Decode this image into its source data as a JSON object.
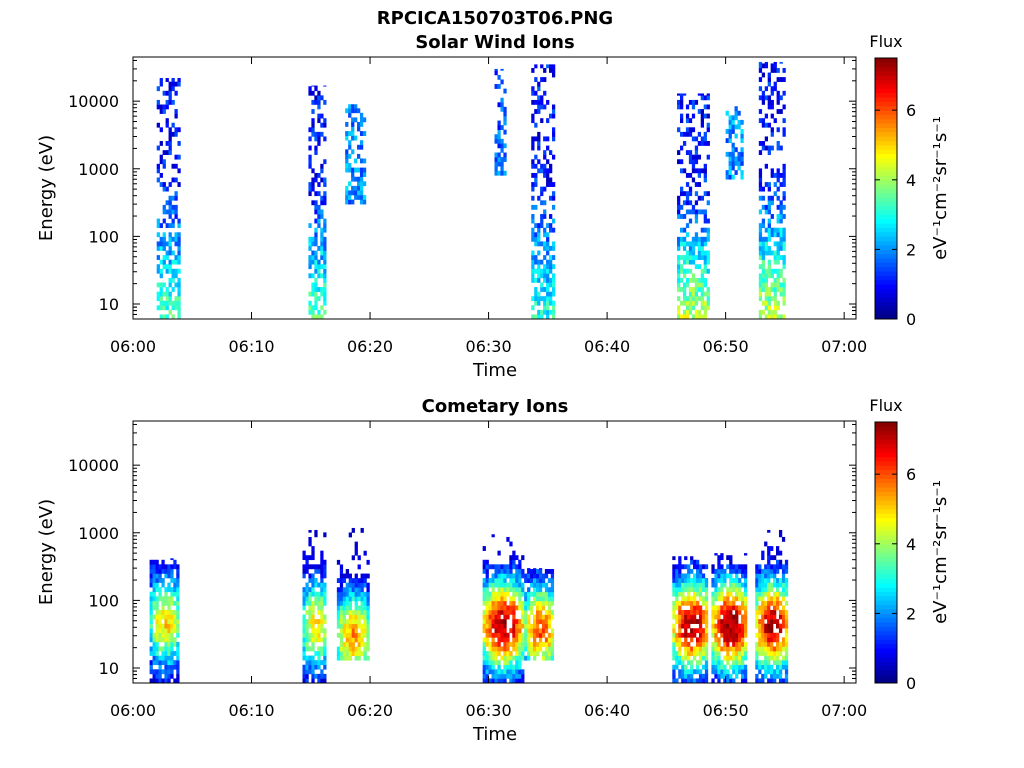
{
  "figure": {
    "title": "RPCICA150703T06.PNG"
  },
  "colormap": {
    "name": "jet",
    "stops": [
      "#00007f",
      "#0000ff",
      "#007fff",
      "#00ffff",
      "#7fff7f",
      "#ffff00",
      "#ff7f00",
      "#ff0000",
      "#7f0000"
    ]
  },
  "chart_data": [
    {
      "type": "heatmap",
      "title": "Solar Wind Ions",
      "xlabel": "Time",
      "ylabel": "Energy (eV)",
      "x_ticks": [
        "06:00",
        "06:10",
        "06:20",
        "06:30",
        "06:40",
        "06:50",
        "07:00"
      ],
      "x_tick_minutes": [
        0,
        10,
        20,
        30,
        40,
        50,
        60
      ],
      "xlim_minutes": [
        0,
        61
      ],
      "y_scale": "log",
      "ylim": [
        6,
        45000
      ],
      "y_ticks": [
        "10",
        "100",
        "1000",
        "10000"
      ],
      "y_tick_values": [
        10,
        100,
        1000,
        10000
      ],
      "colorbar": {
        "label_top": "Flux",
        "unit_label": "eV⁻¹cm⁻²sr⁻¹s⁻¹",
        "range": [
          0,
          7.5
        ],
        "ticks": [
          "0",
          "2",
          "4",
          "6"
        ],
        "tick_values": [
          0,
          2,
          4,
          6
        ]
      },
      "bursts": [
        {
          "t_start": 2.0,
          "t_end": 3.8,
          "e_min": 6,
          "e_max": 22000,
          "low_flux": 3.5,
          "high_flux": 1.0
        },
        {
          "t_start": 14.8,
          "t_end": 16.3,
          "e_min": 6,
          "e_max": 17000,
          "low_flux": 3.5,
          "high_flux": 1.0
        },
        {
          "t_start": 17.9,
          "t_end": 19.6,
          "e_min": 300,
          "e_max": 9000,
          "low_flux": 2.0,
          "high_flux": 2.0
        },
        {
          "t_start": 30.5,
          "t_end": 31.4,
          "e_min": 800,
          "e_max": 30000,
          "low_flux": 2.0,
          "high_flux": 1.5
        },
        {
          "t_start": 33.6,
          "t_end": 35.5,
          "e_min": 6,
          "e_max": 35000,
          "low_flux": 3.0,
          "high_flux": 1.0
        },
        {
          "t_start": 45.9,
          "t_end": 48.5,
          "e_min": 6,
          "e_max": 13000,
          "low_flux": 4.2,
          "high_flux": 1.0
        },
        {
          "t_start": 50.0,
          "t_end": 51.5,
          "e_min": 700,
          "e_max": 9000,
          "low_flux": 2.0,
          "high_flux": 2.0
        },
        {
          "t_start": 52.8,
          "t_end": 55.0,
          "e_min": 6,
          "e_max": 38000,
          "low_flux": 4.2,
          "high_flux": 1.0
        }
      ]
    },
    {
      "type": "heatmap",
      "title": "Cometary Ions",
      "xlabel": "Time",
      "ylabel": "Energy (eV)",
      "x_ticks": [
        "06:00",
        "06:10",
        "06:20",
        "06:30",
        "06:40",
        "06:50",
        "07:00"
      ],
      "x_tick_minutes": [
        0,
        10,
        20,
        30,
        40,
        50,
        60
      ],
      "xlim_minutes": [
        0,
        61
      ],
      "y_scale": "log",
      "ylim": [
        6,
        45000
      ],
      "y_ticks": [
        "10",
        "100",
        "1000",
        "10000"
      ],
      "y_tick_values": [
        10,
        100,
        1000,
        10000
      ],
      "colorbar": {
        "label_top": "Flux",
        "unit_label": "eV⁻¹cm⁻²sr⁻¹s⁻¹",
        "range": [
          0,
          7.5
        ],
        "ticks": [
          "0",
          "2",
          "4",
          "6"
        ],
        "tick_values": [
          0,
          2,
          4,
          6
        ]
      },
      "bursts": [
        {
          "t_start": 1.4,
          "t_end": 3.8,
          "e_min": 6,
          "e_max": 420,
          "peak_energy": 45,
          "peak_flux": 5.0
        },
        {
          "t_start": 14.3,
          "t_end": 16.3,
          "e_min": 6,
          "e_max": 1100,
          "peak_energy": 40,
          "peak_flux": 5.0
        },
        {
          "t_start": 17.2,
          "t_end": 19.8,
          "e_min": 13,
          "e_max": 1200,
          "peak_energy": 28,
          "peak_flux": 5.5
        },
        {
          "t_start": 29.5,
          "t_end": 32.8,
          "e_min": 6,
          "e_max": 950,
          "peak_energy": 40,
          "peak_flux": 7.2
        },
        {
          "t_start": 33.0,
          "t_end": 35.5,
          "e_min": 13,
          "e_max": 300,
          "peak_energy": 35,
          "peak_flux": 6.0
        },
        {
          "t_start": 45.5,
          "t_end": 48.5,
          "e_min": 6,
          "e_max": 450,
          "peak_energy": 40,
          "peak_flux": 7.2
        },
        {
          "t_start": 48.8,
          "t_end": 51.8,
          "e_min": 6,
          "e_max": 500,
          "peak_energy": 40,
          "peak_flux": 7.4
        },
        {
          "t_start": 52.5,
          "t_end": 55.2,
          "e_min": 6,
          "e_max": 1100,
          "peak_energy": 40,
          "peak_flux": 7.2
        }
      ]
    }
  ]
}
